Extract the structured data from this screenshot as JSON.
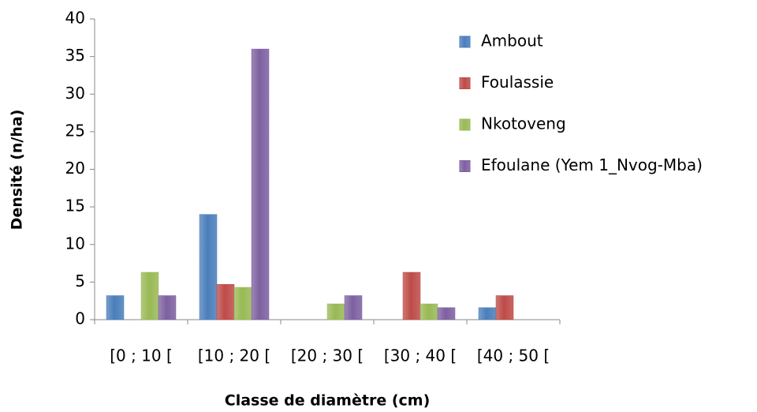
{
  "chart_data": {
    "type": "bar",
    "xlabel": "Classe de diamètre (cm)",
    "ylabel": "Densité (n/ha)",
    "categories": [
      "[0 ; 10 [",
      "[10 ; 20 [",
      "[20 ; 30 [",
      "[30 ; 40 [",
      "[40 ; 50 ["
    ],
    "series": [
      {
        "name": "Ambout",
        "color": "#4a7ebb",
        "values": [
          3.2,
          14,
          0,
          0,
          1.6
        ]
      },
      {
        "name": "Foulassie",
        "color": "#be4b48",
        "values": [
          0,
          4.7,
          0,
          6.3,
          3.2
        ]
      },
      {
        "name": "Nkotoveng",
        "color": "#98b954",
        "values": [
          6.3,
          4.3,
          2.1,
          2.1,
          0
        ]
      },
      {
        "name": "Efoulane (Yem 1_Nvog-Mba)",
        "color": "#7d60a0",
        "values": [
          3.2,
          36,
          3.2,
          1.6,
          0
        ]
      }
    ],
    "ylim": [
      0,
      40
    ],
    "yticks": [
      0,
      5,
      10,
      15,
      20,
      25,
      30,
      35,
      40
    ],
    "grid": false,
    "legend": "right"
  }
}
